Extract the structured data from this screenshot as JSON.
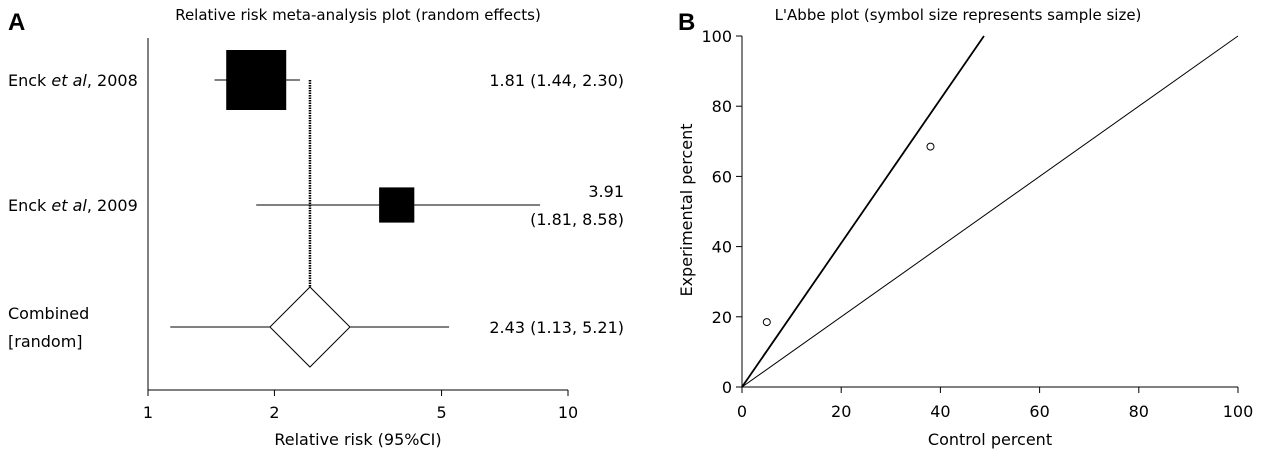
{
  "chart_data": [
    {
      "type": "forest",
      "panel": "A",
      "title": "Relative risk meta-analysis plot (random effects)",
      "xlabel": "Relative risk (95%CI)",
      "x_scale": "log",
      "xlim": [
        1,
        10
      ],
      "xticks": [
        "1",
        "2",
        "5",
        "10"
      ],
      "pooled_estimate": 2.43,
      "studies": [
        {
          "label_pre": "Enck ",
          "label_italic": "et al",
          "label_post": ", 2008",
          "rr": 1.81,
          "lo": 1.44,
          "hi": 2.3,
          "weight": 1.0,
          "text_line1": "1.81 (1.44, 2.30)",
          "text_line2": ""
        },
        {
          "label_pre": "Enck ",
          "label_italic": "et al",
          "label_post": ", 2009",
          "rr": 3.91,
          "lo": 1.81,
          "hi": 8.58,
          "weight": 0.38,
          "text_line1": "3.91",
          "text_line2": "(1.81, 8.58)"
        }
      ],
      "combined": {
        "label_line1": "Combined",
        "label_line2": "[random]",
        "rr": 2.43,
        "lo": 1.13,
        "hi": 5.21,
        "text": "2.43 (1.13, 5.21)"
      }
    },
    {
      "type": "scatter",
      "panel": "B",
      "title": "L'Abbe plot (symbol size represents sample size)",
      "xlabel": "Control percent",
      "ylabel": "Experimental percent",
      "xlim": [
        0,
        100
      ],
      "ylim": [
        0,
        100
      ],
      "xticks": [
        0,
        20,
        40,
        60,
        80,
        100
      ],
      "yticks": [
        0,
        20,
        40,
        60,
        80,
        100
      ],
      "points": [
        {
          "x": 5,
          "y": 18.5
        },
        {
          "x": 38,
          "y": 68.5
        }
      ],
      "lines": [
        {
          "slope": 1,
          "intercept": 0
        },
        {
          "slope": 2.05,
          "intercept": 0
        }
      ]
    }
  ]
}
